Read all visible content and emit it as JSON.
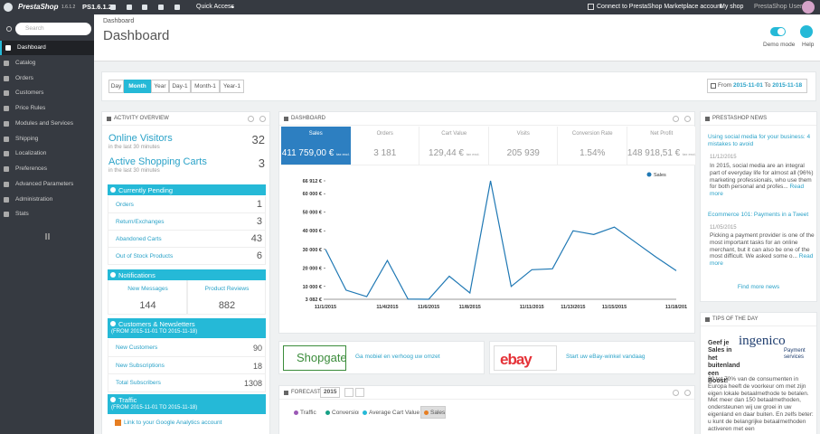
{
  "top_bar": {
    "brand": "PrestaShop",
    "version": "1.6.1.2",
    "shop_version": "PS1.6.1.2",
    "quick_access": "Quick Access",
    "marketplace": "Connect to PrestaShop Marketplace account",
    "my_shop": "My shop",
    "user": "PrestaShop User"
  },
  "sidebar": {
    "search_placeholder": "Search",
    "menu": [
      {
        "label": "Dashboard",
        "active": true
      },
      {
        "label": "Catalog"
      },
      {
        "label": "Orders"
      },
      {
        "label": "Customers"
      },
      {
        "label": "Price Rules"
      },
      {
        "label": "Modules and Services"
      },
      {
        "label": "Shipping"
      },
      {
        "label": "Localization"
      },
      {
        "label": "Preferences"
      },
      {
        "label": "Advanced Parameters"
      },
      {
        "label": "Administration"
      },
      {
        "label": "Stats"
      }
    ]
  },
  "header": {
    "breadcrumb": "Dashboard",
    "title": "Dashboard",
    "demo_mode": "Demo mode",
    "help": "Help"
  },
  "filters": {
    "periods": [
      {
        "label": "Day"
      },
      {
        "label": "Month",
        "active": true
      },
      {
        "label": "Year"
      },
      {
        "label": "Day-1"
      },
      {
        "label": "Month-1"
      },
      {
        "label": "Year-1"
      }
    ],
    "from_label": "From",
    "from": "2015-11-01",
    "to_label": "To",
    "to": "2015-11-18"
  },
  "activity": {
    "title": "ACTIVITY OVERVIEW",
    "online_visitors": {
      "label": "Online Visitors",
      "note": "in the last 30 minutes",
      "value": 32
    },
    "active_carts": {
      "label": "Active Shopping Carts",
      "note": "in the last 30 minutes",
      "value": 3
    },
    "pending": {
      "title": "Currently Pending",
      "rows": [
        {
          "label": "Orders",
          "value": 1
        },
        {
          "label": "Return/Exchanges",
          "value": 3
        },
        {
          "label": "Abandoned Carts",
          "value": 43
        },
        {
          "label": "Out of Stock Products",
          "value": 6
        }
      ]
    },
    "notifications": {
      "title": "Notifications",
      "columns": [
        {
          "label": "New Messages",
          "value": 144
        },
        {
          "label": "Product Reviews",
          "value": 882
        }
      ]
    },
    "customers": {
      "title": "Customers & Newsletters",
      "subtitle": "(FROM 2015-11-01 TO 2015-11-18)",
      "rows": [
        {
          "label": "New Customers",
          "value": 90
        },
        {
          "label": "New Subscriptions",
          "value": 18
        },
        {
          "label": "Total Subscribers",
          "value": 1308
        }
      ]
    },
    "traffic": {
      "title": "Traffic",
      "subtitle": "(FROM 2015-11-01 TO 2015-11-18)",
      "link": "Link to your Google Analytics account"
    }
  },
  "dashboard": {
    "title": "DASHBOARD",
    "kpis": [
      {
        "label": "Sales",
        "value": "411 759,00 €",
        "note": "tax excl.",
        "active": true
      },
      {
        "label": "Orders",
        "value": "3 181"
      },
      {
        "label": "Cart Value",
        "value": "129,44 €",
        "note": "tax excl."
      },
      {
        "label": "Visits",
        "value": "205 939"
      },
      {
        "label": "Conversion Rate",
        "value": "1.54%"
      },
      {
        "label": "Net Profit",
        "value": "148 918,51 €",
        "note": "tax excl."
      }
    ]
  },
  "chart_data": {
    "type": "line",
    "categories": [
      "11/1/2015",
      null,
      null,
      "11/4/2015",
      null,
      "11/6/2015",
      null,
      "11/8/2015",
      null,
      null,
      "11/11/2015",
      null,
      "11/13/2015",
      null,
      "11/15/2015",
      null,
      null,
      "11/18/201"
    ],
    "series": [
      {
        "name": "Sales",
        "color": "#1f78b4",
        "values": [
          30000,
          8000,
          4500,
          24000,
          3200,
          3082,
          15500,
          6500,
          66912,
          10000,
          19000,
          19500,
          40000,
          38000,
          42000,
          34000,
          26000,
          18500
        ]
      }
    ],
    "ylim": [
      3082,
      66912
    ],
    "yticks": [
      {
        "value": 3082,
        "label": "3 082 €"
      },
      {
        "value": 10000,
        "label": "10 000 €"
      },
      {
        "value": 20000,
        "label": "20 000 €"
      },
      {
        "value": 30000,
        "label": "30 000 €"
      },
      {
        "value": 40000,
        "label": "40 000 €"
      },
      {
        "value": 50000,
        "label": "50 000 €"
      },
      {
        "value": 60000,
        "label": "60 000 €"
      },
      {
        "value": 66912,
        "label": "66 912 €"
      }
    ],
    "legend": "top-right"
  },
  "ads": [
    {
      "logo": "Shopgate",
      "text": "Ga mobiel en verhoog uw omzet"
    },
    {
      "logo": "ebay",
      "text": "Start uw eBay-winkel vandaag"
    }
  ],
  "forecast": {
    "title": "FORECAST",
    "year": "2015",
    "tabs": [
      {
        "label": "Traffic",
        "color": "#9b59b6"
      },
      {
        "label": "Conversion",
        "color": "#16a085"
      },
      {
        "label": "Average Cart Value",
        "color": "#25b9d7"
      },
      {
        "label": "Sales",
        "color": "#e67e22",
        "active": true
      }
    ]
  },
  "news": {
    "title": "PRESTASHOP NEWS",
    "items": [
      {
        "title": "Using social media for your business: 4 mistakes to avoid",
        "date": "11/12/2015",
        "text": "In 2015, social media are an integral part of everyday life for almost all (96%) marketing professionals, who use them for both personal and profes...",
        "more": "Read more"
      },
      {
        "title": "Ecommerce 101: Payments in a Tweet",
        "date": "11/05/2015",
        "text": "Picking a payment provider is one of the most important tasks for an online merchant, but it can also be one of the most difficult. We asked some o...",
        "more": "Read more"
      }
    ],
    "find_more": "Find more news"
  },
  "tips": {
    "title": "TIPS OF THE DAY",
    "logo": "ingenico",
    "logo_sub": "Payment services",
    "headline": "Geef je Sales in het buitenland een Boost!",
    "text": "30 tot 70% van de consumenten in Europa heeft de voorkeur om met zijn eigen lokale betaalmethode te betalen. Met meer dan 150 betaalmethoden, ondersteunen wij uw groei in uw eigenland en daar buiten. En zelfs beter: u kunt de belangrijke betaalmethoden activeren met een"
  }
}
